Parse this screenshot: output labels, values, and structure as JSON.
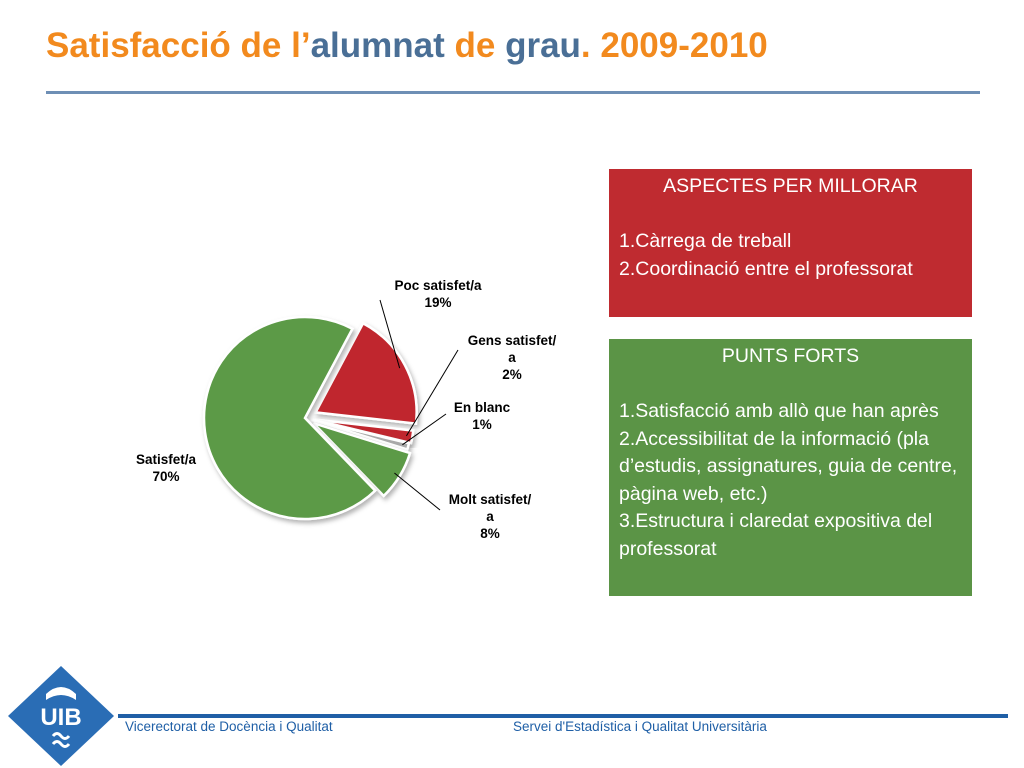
{
  "header": {
    "title_parts": [
      "Satisfacció de l’",
      "alumnat",
      " de ",
      "grau",
      ". 2009-2010"
    ]
  },
  "chart_data": {
    "type": "pie",
    "slices": [
      {
        "label_lines": [
          "Poc satisfet/a",
          "19%"
        ],
        "value": 19,
        "color": "#c0282f"
      },
      {
        "label_lines": [
          "Gens satisfet/",
          "a",
          "2%"
        ],
        "value": 2,
        "color": "#c0282f"
      },
      {
        "label_lines": [
          "En blanc",
          "1%"
        ],
        "value": 1,
        "color": "#a9a9a9"
      },
      {
        "label_lines": [
          "Molt satisfet/",
          "a",
          "8%"
        ],
        "value": 8,
        "color": "#5b9a46"
      },
      {
        "label_lines": [
          "Satisfet/a",
          "70%"
        ],
        "value": 70,
        "color": "#5b9a46"
      }
    ]
  },
  "panels": {
    "improve": {
      "heading": "ASPECTES PER MILLORAR",
      "items": [
        "1.Càrrega de treball",
        "2.Coordinació entre el professorat"
      ]
    },
    "strengths": {
      "heading": "PUNTS FORTS",
      "items": [
        "1.Satisfacció amb allò que han après",
        "2.Accessibilitat de la informació (pla d’estudis, assignatures, guia de centre, pàgina web, etc.)",
        "3.Estructura i claredat expositiva del professorat"
      ]
    }
  },
  "footer": {
    "left": "Vicerectorat de Docència i Qualitat",
    "right": "Servei d'Estadística i Qualitat Universitària"
  },
  "logo": {
    "text": "UIB",
    "color": "#2a6db5"
  }
}
